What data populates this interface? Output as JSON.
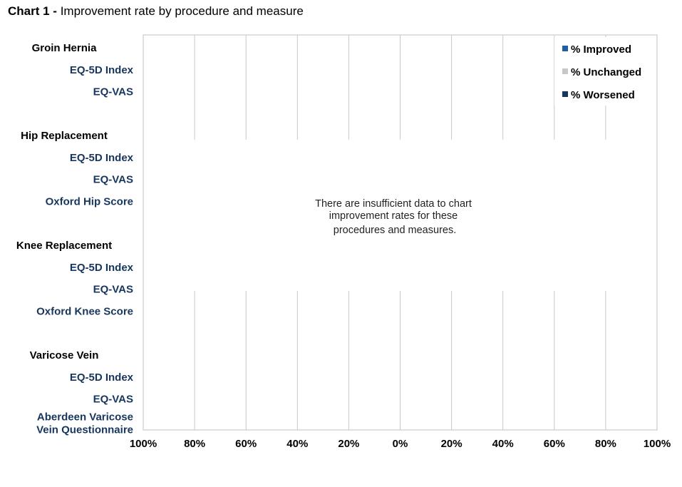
{
  "title": {
    "prefix": "Chart 1 -",
    "text": "Improvement rate by procedure and measure"
  },
  "message": [
    "There are insufficient data to chart",
    "improvement rates for these",
    "procedures and measures."
  ],
  "chart_data": {
    "type": "bar",
    "orientation": "horizontal",
    "stacked": true,
    "x_ticks": [
      "100%",
      "80%",
      "60%",
      "40%",
      "20%",
      "0%",
      "20%",
      "40%",
      "60%",
      "80%",
      "100%"
    ],
    "xlim": [
      -100,
      100
    ],
    "grid": true,
    "legend_position": "top-right",
    "series": [
      {
        "name": "% Improved",
        "color": "#1f5fa8",
        "values": []
      },
      {
        "name": "% Unchanged",
        "color": "#c8c8c8",
        "values": []
      },
      {
        "name": "% Worsened",
        "color": "#17365d",
        "values": []
      }
    ],
    "groups": [
      {
        "name": "Groin Hernia",
        "measures": [
          [
            "EQ-5D Index"
          ],
          [
            "EQ-VAS"
          ]
        ]
      },
      {
        "name": "Hip Replacement",
        "measures": [
          [
            "EQ-5D Index"
          ],
          [
            "EQ-VAS"
          ],
          [
            "Oxford Hip Score"
          ]
        ]
      },
      {
        "name": "Knee Replacement",
        "measures": [
          [
            "EQ-5D Index"
          ],
          [
            "EQ-VAS"
          ],
          [
            "Oxford Knee Score"
          ]
        ]
      },
      {
        "name": "Varicose Vein",
        "measures": [
          [
            "EQ-5D Index"
          ],
          [
            "EQ-VAS"
          ],
          [
            "Aberdeen Varicose",
            "Vein Questionnaire"
          ]
        ]
      }
    ]
  }
}
